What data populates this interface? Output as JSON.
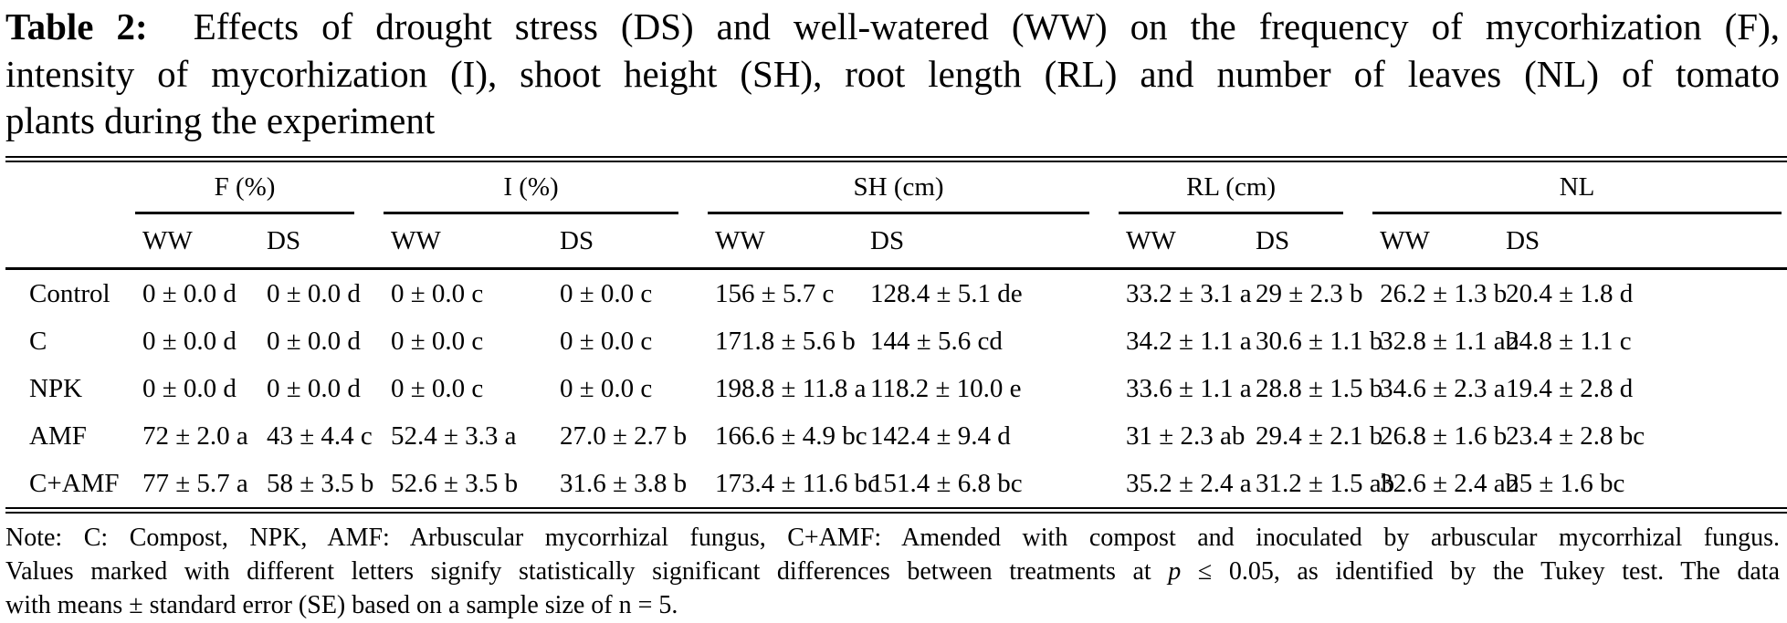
{
  "title": {
    "bold": "Table 2:",
    "line1": "Effects of drought stress (DS) and well-watered (WW) on the frequency of mycorhization (F),",
    "line2": "intensity of mycorhization (I), shoot height (SH), root length (RL) and number of leaves (NL) of tomato",
    "line3": "plants during the experiment"
  },
  "table": {
    "groups": [
      "F (%)",
      "I (%)",
      "SH (cm)",
      "RL (cm)",
      "NL"
    ],
    "subheaders": [
      "WW",
      "DS",
      "WW",
      "DS",
      "WW",
      "DS",
      "WW",
      "DS",
      "WW",
      "DS"
    ],
    "rows": [
      [
        "Control",
        "0 ± 0.0 d",
        "0 ± 0.0 d",
        "0 ± 0.0 c",
        "0 ± 0.0 c",
        "156 ± 5.7 c",
        "128.4 ± 5.1 de",
        "33.2 ± 3.1 a",
        "29 ± 2.3 b",
        "26.2 ± 1.3 b",
        "20.4 ± 1.8 d"
      ],
      [
        "C",
        "0 ± 0.0 d",
        "0 ± 0.0 d",
        "0 ± 0.0 c",
        "0 ± 0.0 c",
        "171.8 ± 5.6 b",
        "144 ± 5.6 cd",
        "34.2 ± 1.1 a",
        "30.6 ± 1.1 b",
        "32.8 ± 1.1 ab",
        "24.8 ± 1.1 c"
      ],
      [
        "NPK",
        "0 ± 0.0 d",
        "0 ± 0.0 d",
        "0 ± 0.0 c",
        "0 ± 0.0 c",
        "198.8 ± 11.8 a",
        "118.2 ± 10.0 e",
        "33.6 ± 1.1 a",
        "28.8 ± 1.5 b",
        "34.6 ± 2.3 a",
        "19.4 ± 2.8 d"
      ],
      [
        "AMF",
        "72 ± 2.0 a",
        "43 ± 4.4 c",
        "52.4 ± 3.3 a",
        "27.0 ± 2.7 b",
        "166.6 ± 4.9 bc",
        "142.4 ± 9.4 d",
        "31 ± 2.3 ab",
        "29.4 ± 2.1 b",
        "26.8 ± 1.6 b",
        "23.4 ± 2.8 bc"
      ],
      [
        "C+AMF",
        "77 ± 5.7 a",
        "58 ± 3.5 b",
        "52.6 ± 3.5 b",
        "31.6 ± 3.8 b",
        "173.4 ± 11.6 bc",
        "151.4 ± 6.8 bc",
        "35.2 ± 2.4 a",
        "31.2 ± 1.5 ab",
        "32.6 ± 2.4 ab",
        "25 ± 1.6 bc"
      ]
    ]
  },
  "note": {
    "line1": "Note: C: Compost, NPK, AMF: Arbuscular mycorrhizal fungus, C+AMF: Amended with compost and inoculated by arbuscular mycorrhizal fungus.",
    "line2_pre": "Values marked with different letters signify statistically significant differences between treatments at ",
    "p_symbol": "p",
    "line2_post": " ≤ 0.05, as identified by the Tukey test. The data",
    "line3": "with means ± standard error (SE) based on a sample size of n = 5."
  }
}
